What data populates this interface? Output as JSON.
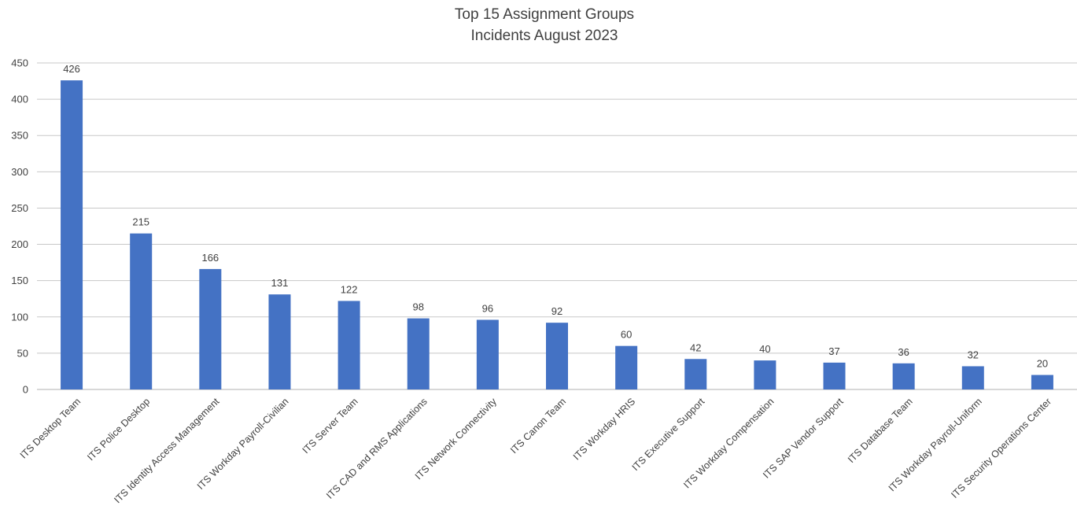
{
  "chart_data": {
    "type": "bar",
    "title": "Top 15 Assignment Groups",
    "subtitle": "Incidents August 2023",
    "xlabel": "",
    "ylabel": "",
    "ylim": [
      0,
      450
    ],
    "yticks": [
      0,
      50,
      100,
      150,
      200,
      250,
      300,
      350,
      400,
      450
    ],
    "grid": true,
    "legend": "none",
    "bar_color": "#4472C4",
    "categories": [
      "ITS Desktop Team",
      "ITS Police Desktop",
      "ITS Identity Access Management",
      "ITS Workday Payroll-Civilian",
      "ITS Server Team",
      "ITS CAD and RMS Applications",
      "ITS Network Connectivity",
      "ITS Canon Team",
      "ITS Workday HRIS",
      "ITS Executive Support",
      "ITS Workday Compensation",
      "ITS SAP Vendor Support",
      "ITS Database Team",
      "ITS Workday Payroll-Uniform",
      "ITS Security Operations Center"
    ],
    "values": [
      426,
      215,
      166,
      131,
      122,
      98,
      96,
      92,
      60,
      42,
      40,
      37,
      36,
      32,
      20
    ]
  }
}
